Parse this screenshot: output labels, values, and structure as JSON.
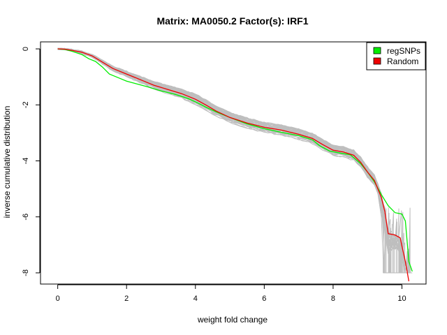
{
  "chart_data": {
    "type": "line",
    "title": "Matrix: MA0050.2 Factor(s): IRF1",
    "xlabel": "weight fold change",
    "ylabel": "inverse cumulative distribution",
    "xlim": [
      -0.5,
      10.7
    ],
    "ylim": [
      -8.4,
      0.25
    ],
    "x_ticks": [
      0,
      2,
      4,
      6,
      8,
      10
    ],
    "y_ticks": [
      0,
      -2,
      -4,
      -6,
      -8
    ],
    "grid": false,
    "legend_position": "top-right",
    "colors": {
      "background_series": "#bebebe",
      "regSNPs": "#00ee00",
      "Random": "#ee0000"
    },
    "series": [
      {
        "name": "regSNPs",
        "color": "#00ee00",
        "x": [
          0.0,
          0.2,
          0.4,
          0.7,
          0.9,
          1.1,
          1.3,
          1.5,
          1.8,
          2.0,
          2.3,
          2.6,
          3.0,
          3.4,
          3.8,
          4.1,
          4.3,
          4.6,
          5.0,
          5.5,
          6.0,
          6.5,
          7.0,
          7.4,
          7.6,
          7.9,
          8.2,
          8.5,
          8.8,
          9.0,
          9.2,
          9.4,
          9.6,
          9.8,
          10.0,
          10.1,
          10.2,
          10.3
        ],
        "y": [
          0.0,
          -0.02,
          -0.08,
          -0.2,
          -0.35,
          -0.45,
          -0.65,
          -0.9,
          -1.05,
          -1.15,
          -1.25,
          -1.35,
          -1.5,
          -1.62,
          -1.78,
          -1.95,
          -2.08,
          -2.25,
          -2.45,
          -2.68,
          -2.85,
          -2.98,
          -3.1,
          -3.25,
          -3.45,
          -3.65,
          -3.72,
          -3.78,
          -4.1,
          -4.4,
          -4.75,
          -5.2,
          -5.6,
          -5.85,
          -5.9,
          -6.15,
          -7.6,
          -7.95
        ]
      },
      {
        "name": "Random",
        "color": "#ee0000",
        "x": [
          0.0,
          0.2,
          0.4,
          0.7,
          1.0,
          1.2,
          1.4,
          1.6,
          1.9,
          2.2,
          2.5,
          2.8,
          3.2,
          3.6,
          4.0,
          4.3,
          4.6,
          5.0,
          5.5,
          6.0,
          6.5,
          7.0,
          7.4,
          7.7,
          8.0,
          8.3,
          8.6,
          8.8,
          9.0,
          9.2,
          9.4,
          9.5,
          9.6,
          9.8,
          9.95,
          10.0,
          10.1,
          10.2
        ],
        "y": [
          0.0,
          -0.01,
          -0.05,
          -0.12,
          -0.25,
          -0.4,
          -0.55,
          -0.7,
          -0.85,
          -1.0,
          -1.15,
          -1.3,
          -1.45,
          -1.6,
          -1.8,
          -2.0,
          -2.22,
          -2.45,
          -2.65,
          -2.8,
          -2.9,
          -3.05,
          -3.2,
          -3.42,
          -3.62,
          -3.68,
          -3.8,
          -4.05,
          -4.4,
          -4.7,
          -5.3,
          -5.8,
          -6.6,
          -6.65,
          -6.75,
          -7.05,
          -7.6,
          -8.3
        ]
      }
    ]
  },
  "legend": {
    "items": [
      {
        "label": "regSNPs",
        "color": "#00ee00"
      },
      {
        "label": "Random",
        "color": "#ee0000"
      }
    ]
  }
}
